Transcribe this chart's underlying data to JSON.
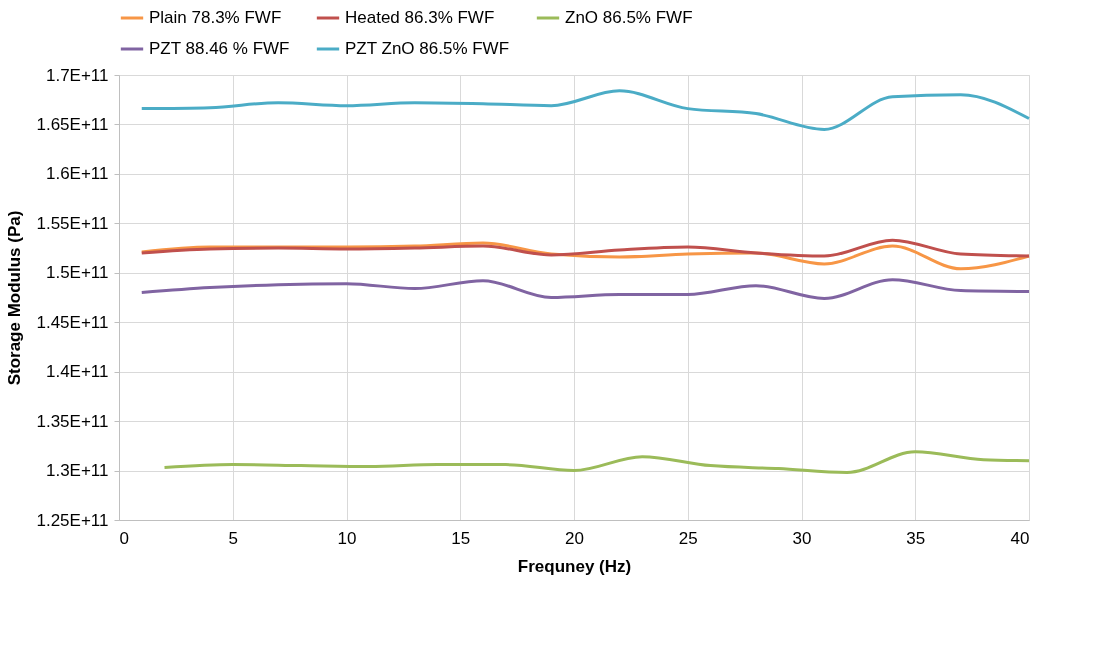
{
  "chart_data": {
    "type": "line",
    "xlabel": "Frequney (Hz)",
    "ylabel": "Storage Modulus (Pa)",
    "xlim": [
      0,
      40
    ],
    "xticks": [
      0,
      5,
      10,
      15,
      20,
      25,
      30,
      35,
      40
    ],
    "ylim": [
      125000000000,
      170000000000
    ],
    "yticks": [
      {
        "value": 125000000000,
        "label": "1.25E+11"
      },
      {
        "value": 130000000000,
        "label": "1.3E+11"
      },
      {
        "value": 135000000000,
        "label": "1.35E+11"
      },
      {
        "value": 140000000000,
        "label": "1.4E+11"
      },
      {
        "value": 145000000000,
        "label": "1.45E+11"
      },
      {
        "value": 150000000000,
        "label": "1.5E+11"
      },
      {
        "value": 155000000000,
        "label": "1.55E+11"
      },
      {
        "value": 160000000000,
        "label": "1.6E+11"
      },
      {
        "value": 165000000000,
        "label": "1.65E+11"
      },
      {
        "value": 170000000000,
        "label": "1.7E+11"
      }
    ],
    "grid": true,
    "legend": "top",
    "marker": "none",
    "line_style": "solid",
    "series": [
      {
        "name": "Plain 78.3% FWF",
        "color": "#f79646",
        "x": [
          1,
          4,
          7,
          10,
          13,
          16,
          19,
          22,
          25,
          28,
          31,
          34,
          37,
          40
        ],
        "values": [
          152100000000,
          152600000000,
          152600000000,
          152600000000,
          152700000000,
          153000000000,
          151900000000,
          151600000000,
          151900000000,
          152000000000,
          150900000000,
          152700000000,
          150400000000,
          151700000000
        ]
      },
      {
        "name": "Heated 86.3% FWF",
        "color": "#c0504d",
        "x": [
          1,
          4,
          7,
          10,
          13,
          16,
          19,
          22,
          25,
          28,
          31,
          34,
          37,
          40
        ],
        "values": [
          152000000000,
          152400000000,
          152500000000,
          152400000000,
          152500000000,
          152700000000,
          151800000000,
          152300000000,
          152600000000,
          152000000000,
          151700000000,
          153300000000,
          151900000000,
          151700000000
        ]
      },
      {
        "name": "ZnO 86.5% FWF",
        "color": "#9bbb59",
        "x": [
          2,
          5,
          8,
          11,
          14,
          17,
          20,
          23,
          26,
          29,
          32,
          35,
          38,
          40
        ],
        "values": [
          130300000000,
          130600000000,
          130500000000,
          130400000000,
          130600000000,
          130600000000,
          130000000000,
          131400000000,
          130500000000,
          130200000000,
          129800000000,
          131900000000,
          131100000000,
          131000000000
        ]
      },
      {
        "name": "PZT 88.46 % FWF",
        "color": "#8064a2",
        "x": [
          1,
          4,
          7,
          10,
          13,
          16,
          19,
          22,
          25,
          28,
          31,
          34,
          37,
          40
        ],
        "values": [
          148000000000,
          148500000000,
          148800000000,
          148900000000,
          148400000000,
          149200000000,
          147500000000,
          147800000000,
          147800000000,
          148700000000,
          147400000000,
          149300000000,
          148200000000,
          148100000000
        ]
      },
      {
        "name": "PZT ZnO 86.5% FWF",
        "color": "#4bacc6",
        "x": [
          1,
          4,
          7,
          10,
          13,
          16,
          19,
          22,
          25,
          28,
          31,
          34,
          37,
          40
        ],
        "values": [
          166600000000,
          166700000000,
          167200000000,
          166900000000,
          167200000000,
          167100000000,
          166900000000,
          168400000000,
          166600000000,
          166100000000,
          164500000000,
          167800000000,
          168000000000,
          165600000000
        ]
      }
    ]
  }
}
